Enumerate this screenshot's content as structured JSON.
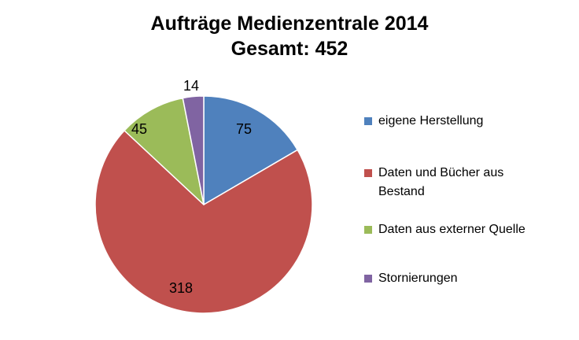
{
  "chart_data": {
    "type": "pie",
    "title": "Aufträge Medienzentrale 2014",
    "subtitle": "Gesamt: 452",
    "categories": [
      "eigene Herstellung",
      "Daten und Bücher aus Bestand",
      "Daten aus externer Quelle",
      "Stornierungen"
    ],
    "values": [
      75,
      318,
      45,
      14
    ],
    "data_labels": [
      "75",
      "318",
      "45",
      "14"
    ],
    "colors": [
      "#4F81BD",
      "#C0504D",
      "#9BBB59",
      "#8064A2"
    ],
    "start_angle_deg": 0,
    "direction": "clockwise",
    "legend_position": "right"
  }
}
